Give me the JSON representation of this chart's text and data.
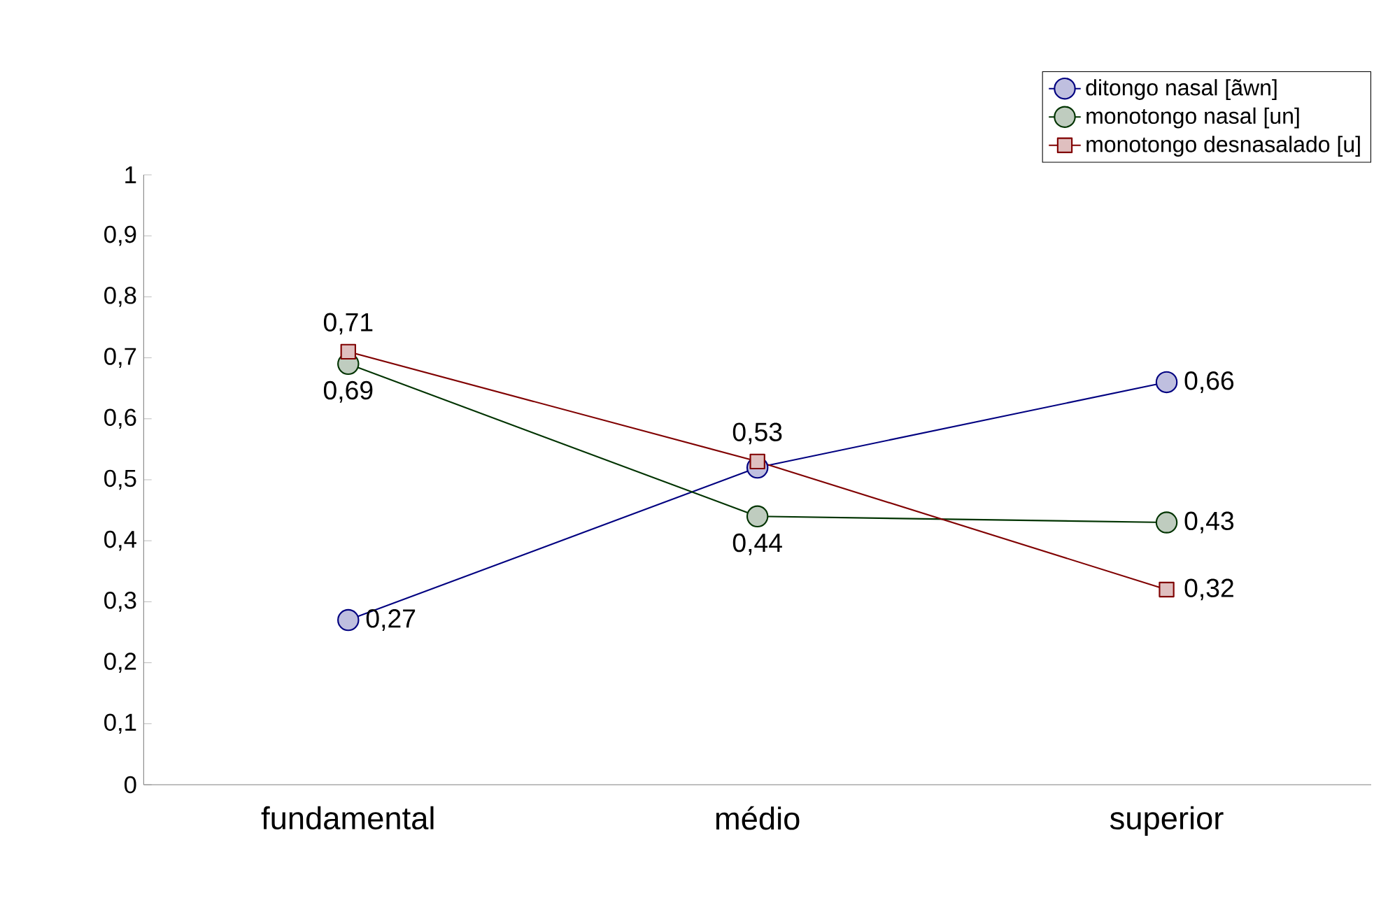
{
  "chart_data": {
    "type": "line",
    "categories": [
      "fundamental",
      "médio",
      "superior"
    ],
    "series": [
      {
        "name": "ditongo nasal [ãwn]",
        "color": "#000080",
        "values": [
          0.27,
          0.52,
          0.66
        ],
        "value_labels": [
          "0,27",
          null,
          "0,66"
        ]
      },
      {
        "name": "monotongo nasal [un]",
        "color": "#003300",
        "values": [
          0.69,
          0.44,
          0.43
        ],
        "value_labels": [
          "0,69",
          "0,44",
          "0,43"
        ]
      },
      {
        "name": "monotongo desnasalado [u]",
        "color": "#800000",
        "marker": "square",
        "values": [
          0.71,
          0.53,
          0.32
        ],
        "value_labels": [
          "0,71",
          "0,53",
          "0,32"
        ]
      }
    ],
    "marker": "circle",
    "ylim": [
      0,
      1
    ],
    "yticks": [
      0,
      {
        "value": 0.1,
        "label": "0,1"
      },
      {
        "value": 0.2,
        "label": "0,2"
      },
      {
        "value": 0.3,
        "label": "0,3"
      },
      {
        "value": 0.4,
        "label": "0,4"
      },
      {
        "value": 0.5,
        "label": "0,5"
      },
      {
        "value": 0.6,
        "label": "0,6"
      },
      {
        "value": 0.7,
        "label": "0,7"
      },
      {
        "value": 0.8,
        "label": "0,8"
      },
      {
        "value": 0.9,
        "label": "0,9"
      },
      1
    ],
    "grid": false,
    "legend": "top right"
  }
}
